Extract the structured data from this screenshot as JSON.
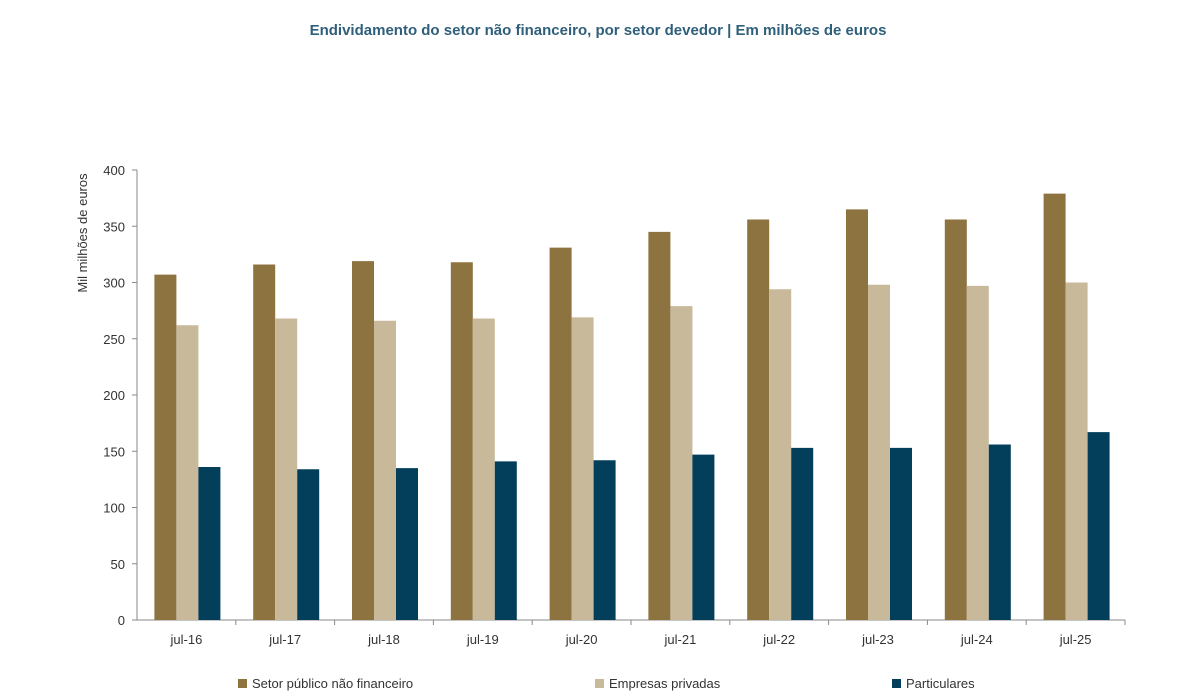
{
  "chart_data": {
    "type": "bar",
    "title": "Endividamento do setor não financeiro, por setor devedor | Em milhões de euros",
    "ylabel": "Mil milhões de euros",
    "xlabel": "",
    "ylim": [
      0,
      400
    ],
    "yticks": [
      0,
      50,
      100,
      150,
      200,
      250,
      300,
      350,
      400
    ],
    "grid": false,
    "legend_position": "bottom",
    "categories": [
      "jul-16",
      "jul-17",
      "jul-18",
      "jul-19",
      "jul-20",
      "jul-21",
      "jul-22",
      "jul-23",
      "jul-24",
      "jul-25"
    ],
    "series": [
      {
        "name": "Setor público não financeiro",
        "color": "#8c733f",
        "values": [
          307,
          316,
          319,
          318,
          331,
          345,
          356,
          365,
          356,
          379
        ]
      },
      {
        "name": "Empresas privadas",
        "color": "#c8b99b",
        "values": [
          262,
          268,
          266,
          268,
          269,
          279,
          294,
          298,
          297,
          300
        ]
      },
      {
        "name": "Particulares",
        "color": "#033f5a",
        "values": [
          136,
          134,
          135,
          141,
          142,
          147,
          153,
          153,
          156,
          167
        ]
      }
    ]
  }
}
